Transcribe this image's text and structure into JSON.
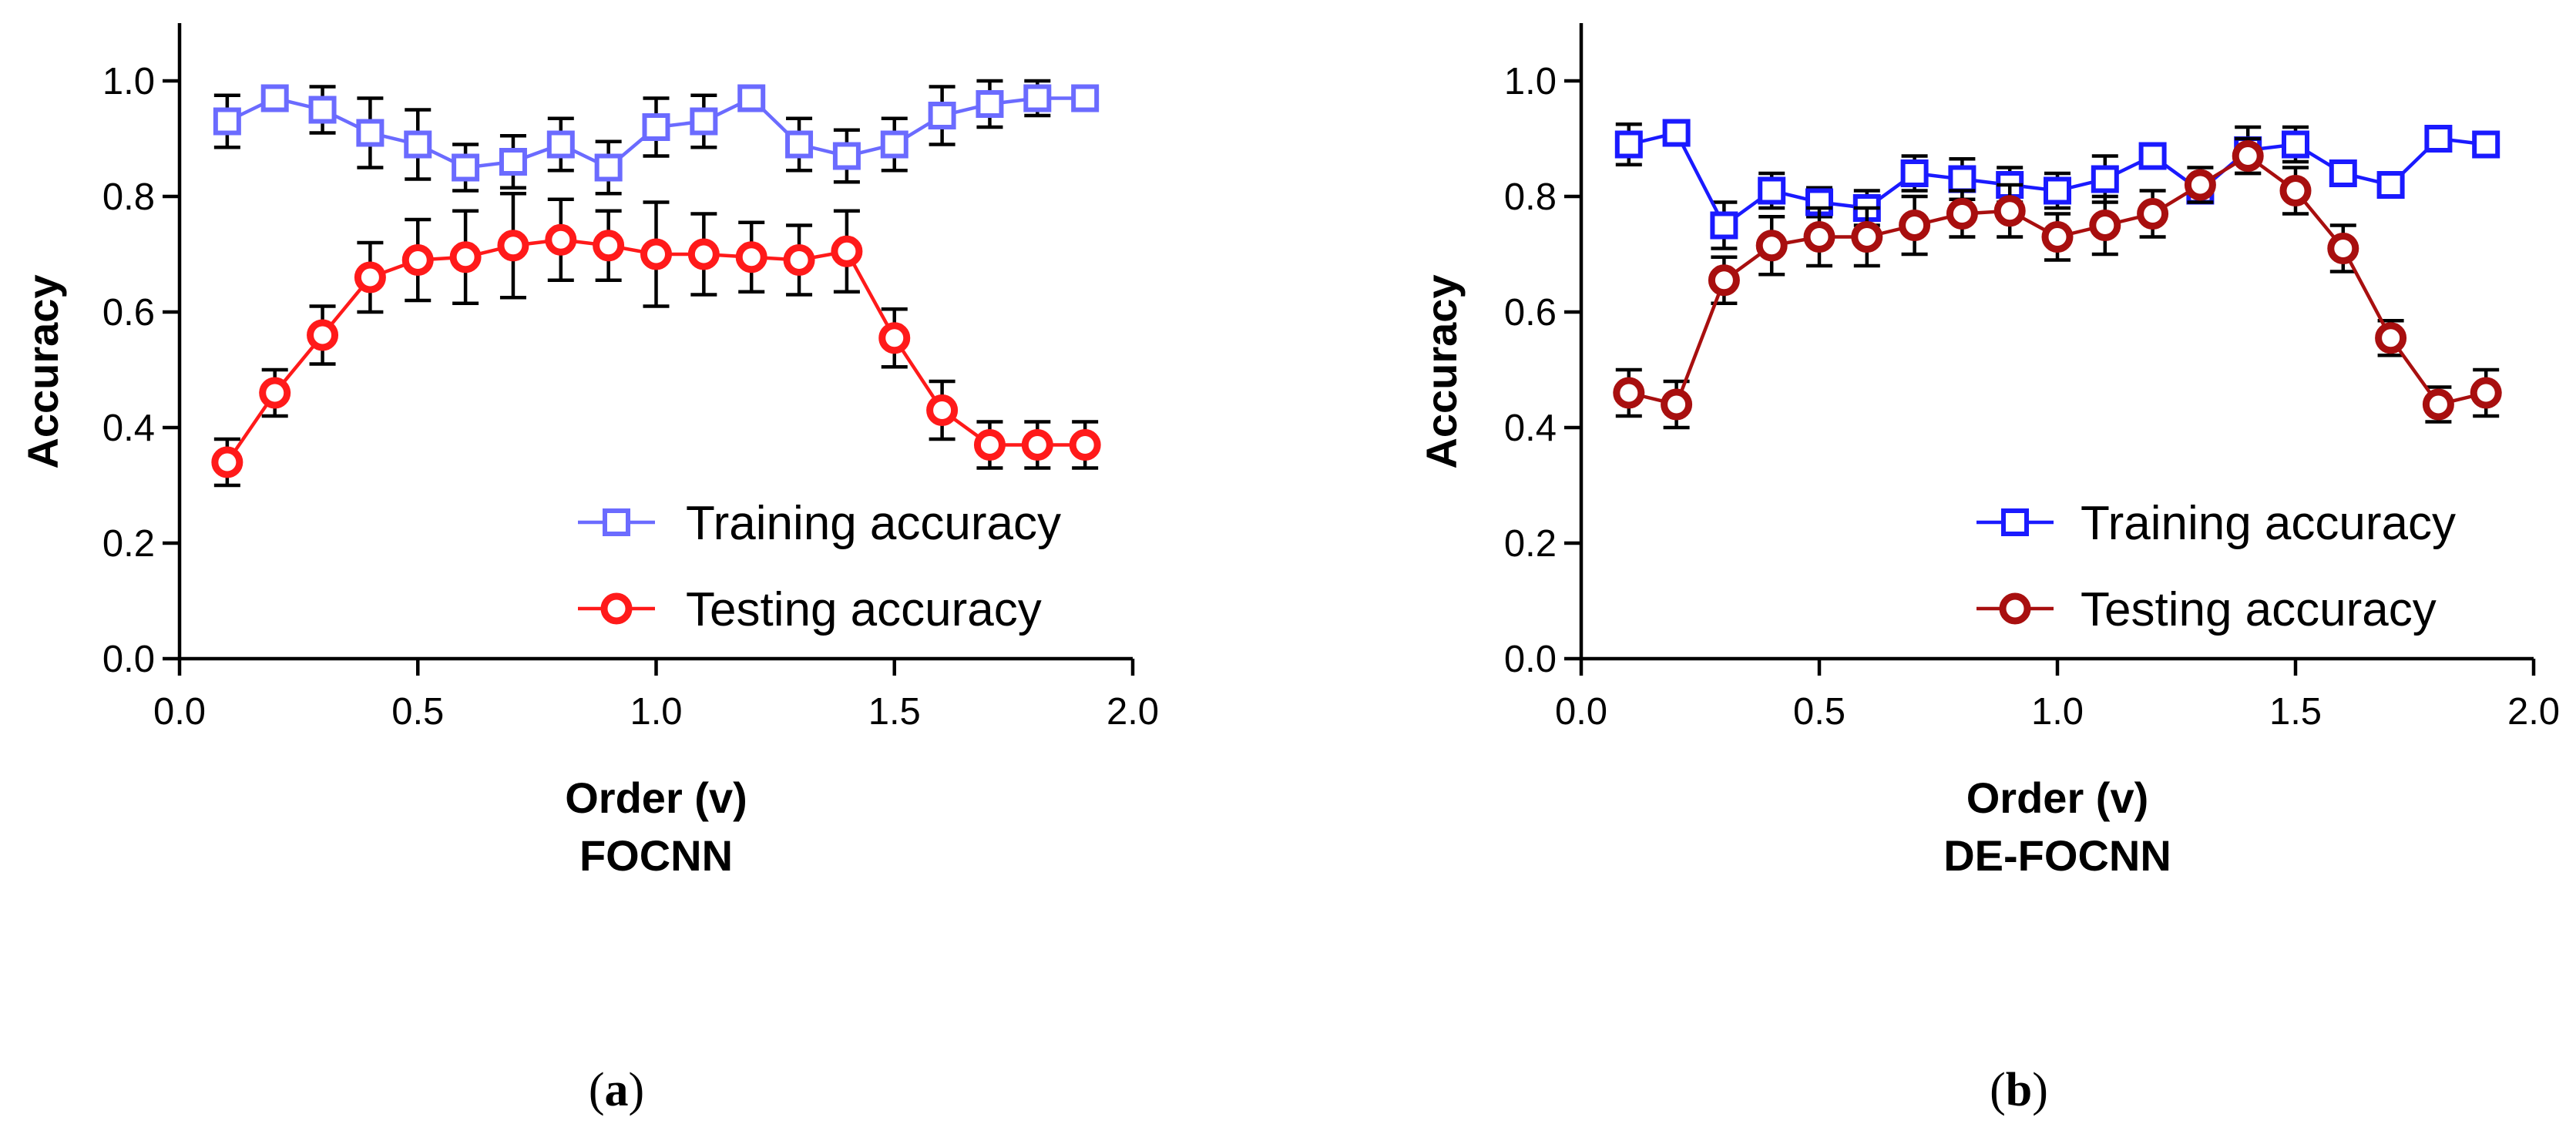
{
  "chart_data": [
    {
      "type": "line",
      "panel_label": "a",
      "title": "FOCNN",
      "xlabel": "Order (v)",
      "ylabel": "Accuracy",
      "xlim": [
        0.0,
        2.0
      ],
      "ylim": [
        0.0,
        1.1
      ],
      "xticks": [
        "0.0",
        "0.5",
        "1.0",
        "1.5",
        "2.0"
      ],
      "yticks": [
        "0.0",
        "0.2",
        "0.4",
        "0.6",
        "0.8",
        "1.0"
      ],
      "legend_position": "bottom-right",
      "x": [
        0.1,
        0.2,
        0.3,
        0.4,
        0.5,
        0.6,
        0.7,
        0.8,
        0.9,
        1.0,
        1.1,
        1.2,
        1.3,
        1.4,
        1.5,
        1.6,
        1.7,
        1.8,
        1.9
      ],
      "series": [
        {
          "name": "Training accuracy",
          "marker": "square",
          "color": "#6b6bff",
          "values": [
            0.93,
            0.97,
            0.95,
            0.91,
            0.89,
            0.85,
            0.86,
            0.89,
            0.85,
            0.92,
            0.93,
            0.97,
            0.89,
            0.87,
            0.89,
            0.94,
            0.96,
            0.97,
            0.97
          ],
          "errors": [
            0.045,
            0.02,
            0.04,
            0.06,
            0.06,
            0.04,
            0.045,
            0.045,
            0.045,
            0.05,
            0.045,
            0.0,
            0.045,
            0.045,
            0.045,
            0.05,
            0.04,
            0.03,
            0.0
          ]
        },
        {
          "name": "Testing accuracy",
          "marker": "circle",
          "color": "#ff1a1a",
          "values": [
            0.34,
            0.46,
            0.56,
            0.66,
            0.69,
            0.695,
            0.715,
            0.725,
            0.715,
            0.7,
            0.7,
            0.695,
            0.69,
            0.705,
            0.555,
            0.43,
            0.37,
            0.37,
            0.37
          ],
          "errors": [
            0.04,
            0.04,
            0.05,
            0.06,
            0.07,
            0.08,
            0.09,
            0.07,
            0.06,
            0.09,
            0.07,
            0.06,
            0.06,
            0.07,
            0.05,
            0.05,
            0.04,
            0.04,
            0.04
          ]
        }
      ]
    },
    {
      "type": "line",
      "panel_label": "b",
      "title": "DE-FOCNN",
      "xlabel": "Order (v)",
      "ylabel": "Accuracy",
      "xlim": [
        0.0,
        2.0
      ],
      "ylim": [
        0.0,
        1.1
      ],
      "xticks": [
        "0.0",
        "0.5",
        "1.0",
        "1.5",
        "2.0"
      ],
      "yticks": [
        "0.0",
        "0.2",
        "0.4",
        "0.6",
        "0.8",
        "1.0"
      ],
      "legend_position": "bottom-right",
      "x": [
        0.1,
        0.2,
        0.3,
        0.4,
        0.5,
        0.6,
        0.7,
        0.8,
        0.9,
        1.0,
        1.1,
        1.2,
        1.3,
        1.4,
        1.5,
        1.6,
        1.7,
        1.8,
        1.9
      ],
      "series": [
        {
          "name": "Training accuracy",
          "marker": "square",
          "color": "#1a1aff",
          "values": [
            0.89,
            0.91,
            0.75,
            0.81,
            0.79,
            0.78,
            0.84,
            0.83,
            0.82,
            0.81,
            0.83,
            0.87,
            0.81,
            0.88,
            0.89,
            0.84,
            0.82,
            0.9,
            0.89
          ],
          "errors": [
            0.035,
            0.02,
            0.04,
            0.03,
            0.025,
            0.03,
            0.03,
            0.035,
            0.03,
            0.03,
            0.04,
            0.02,
            0.02,
            0.04,
            0.03,
            0.02,
            0.02,
            0.02,
            0.0
          ]
        },
        {
          "name": "Testing accuracy",
          "marker": "circle",
          "color": "#a80f0f",
          "values": [
            0.46,
            0.44,
            0.655,
            0.715,
            0.73,
            0.73,
            0.75,
            0.77,
            0.775,
            0.73,
            0.75,
            0.77,
            0.82,
            0.87,
            0.81,
            0.71,
            0.555,
            0.44,
            0.46
          ],
          "errors": [
            0.04,
            0.04,
            0.04,
            0.05,
            0.05,
            0.05,
            0.05,
            0.04,
            0.045,
            0.04,
            0.05,
            0.04,
            0.03,
            0.03,
            0.04,
            0.04,
            0.03,
            0.03,
            0.04
          ]
        }
      ]
    }
  ]
}
